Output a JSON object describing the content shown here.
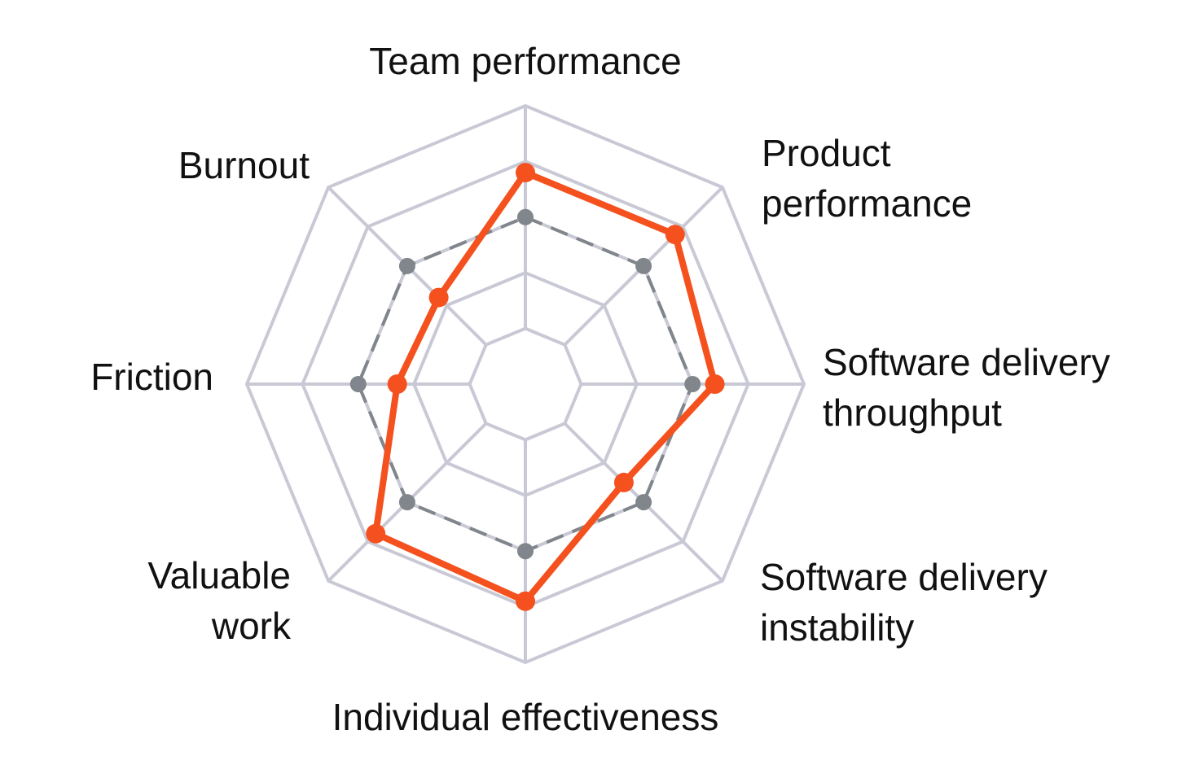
{
  "chart_data": {
    "type": "radar",
    "categories": [
      "Team performance",
      "Product performance",
      "Software delivery throughput",
      "Software delivery instability",
      "Individual effectiveness",
      "Valuable work",
      "Friction",
      "Burnout"
    ],
    "series": [
      {
        "color": "#80868b",
        "dashed": true,
        "values": [
          3,
          3,
          3,
          3,
          3,
          3,
          3,
          3
        ]
      },
      {
        "color": "#f4511e",
        "dashed": false,
        "values": [
          3.8,
          3.8,
          3.4,
          2.5,
          3.9,
          3.8,
          2.3,
          2.2
        ]
      }
    ],
    "ylim": [
      0,
      5
    ],
    "yticks": [
      1,
      2,
      3,
      4,
      5
    ],
    "grid": true,
    "grid_color": "#c9c9d6"
  }
}
